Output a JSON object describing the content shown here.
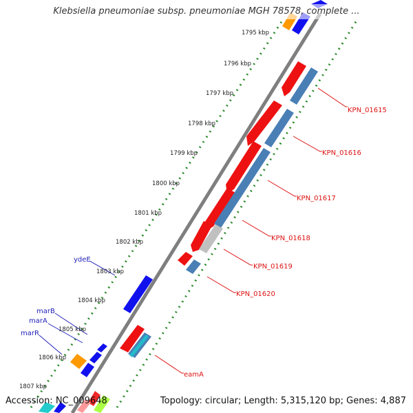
{
  "title": "Klebsiella pneumoniae subsp. pneumoniae MGH 78578, complete ...",
  "footer": {
    "accession": "Accession: NC_009648",
    "summary": "Topology: circular; Length: 5,315,120 bp; Genes: 4,887"
  },
  "colors": {
    "backbone": "#7f7f7f",
    "tick": "#2a8a2a",
    "forward_label": "#2222bb",
    "reverse_label": "#dd1111",
    "cds_red": "#ee1111",
    "cds_blue": "#4a7fb5",
    "cds_grey": "#c0c0c0",
    "cds_darkblue": "#1111ee",
    "cds_orange": "#ff9900",
    "cds_cyan": "#22bbcc"
  },
  "scale_labels": [
    "1795 kbp",
    "1796 kbp",
    "1797 kbp",
    "1798 kbp",
    "1799 kbp",
    "1800 kbp",
    "1801 kbp",
    "1802 kbp",
    "1803 kbp",
    "1804 kbp",
    "1805 kbp",
    "1806 kbp",
    "1807 kbp"
  ],
  "gene_labels": {
    "reverse": [
      "KPN_01615",
      "KPN_01616",
      "KPN_01617",
      "KPN_01618",
      "KPN_01619",
      "KPN_01620",
      "eamA"
    ],
    "forward": [
      "ydeE",
      "marB",
      "marA",
      "marR"
    ]
  }
}
